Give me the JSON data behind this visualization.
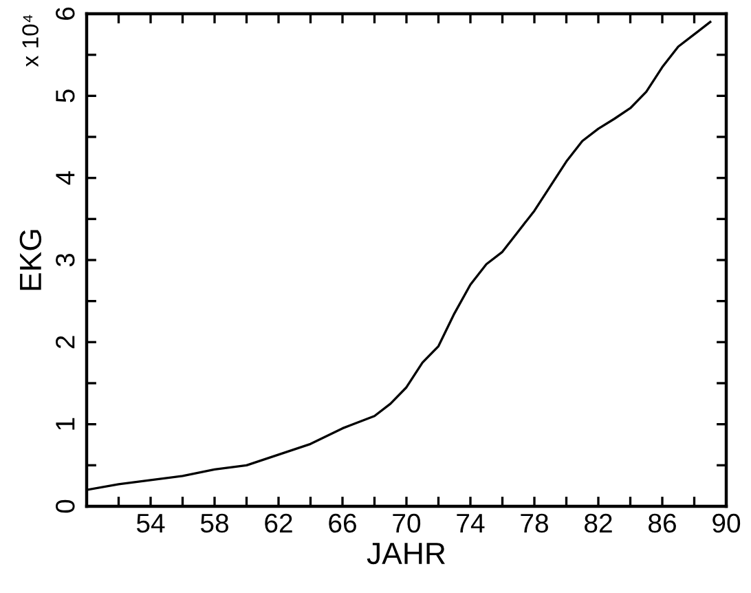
{
  "chart_data": {
    "type": "line",
    "xlabel": "JAHR",
    "ylabel": "EKG",
    "annotations": [
      "x 10⁴"
    ],
    "x": [
      50,
      52,
      54,
      56,
      58,
      60,
      62,
      64,
      66,
      68,
      69,
      70,
      71,
      72,
      73,
      74,
      75,
      76,
      77,
      78,
      79,
      80,
      81,
      82,
      83,
      84,
      85,
      86,
      87,
      88,
      89
    ],
    "series": [
      {
        "color": "#000000",
        "values": [
          0.2,
          0.27,
          0.32,
          0.37,
          0.45,
          0.5,
          0.63,
          0.76,
          0.95,
          1.1,
          1.25,
          1.45,
          1.75,
          1.95,
          2.35,
          2.7,
          2.95,
          3.1,
          3.35,
          3.6,
          3.9,
          4.2,
          4.45,
          4.6,
          4.72,
          4.85,
          5.05,
          5.35,
          5.6,
          5.75,
          5.9
        ]
      }
    ],
    "xlim": [
      50,
      90
    ],
    "xticks": [
      {
        "value": 52,
        "label": null
      },
      54,
      {
        "value": 56,
        "label": null
      },
      58,
      {
        "value": 60,
        "label": null
      },
      62,
      {
        "value": 64,
        "label": null
      },
      66,
      {
        "value": 68,
        "label": null
      },
      70,
      {
        "value": 72,
        "label": null
      },
      74,
      {
        "value": 76,
        "label": null
      },
      78,
      {
        "value": 80,
        "label": null
      },
      82,
      {
        "value": 84,
        "label": null
      },
      86,
      {
        "value": 88,
        "label": null
      },
      90
    ],
    "ylim": [
      0,
      6
    ],
    "yticks": [
      0,
      {
        "value": 0.5,
        "label": null
      },
      1,
      {
        "value": 1.5,
        "label": null
      },
      2,
      {
        "value": 2.5,
        "label": null
      },
      3,
      {
        "value": 3.5,
        "label": null
      },
      4,
      {
        "value": 4.5,
        "label": null
      },
      5,
      {
        "value": 5.5,
        "label": null
      },
      6
    ],
    "marker": "none",
    "line_style": "solid"
  }
}
